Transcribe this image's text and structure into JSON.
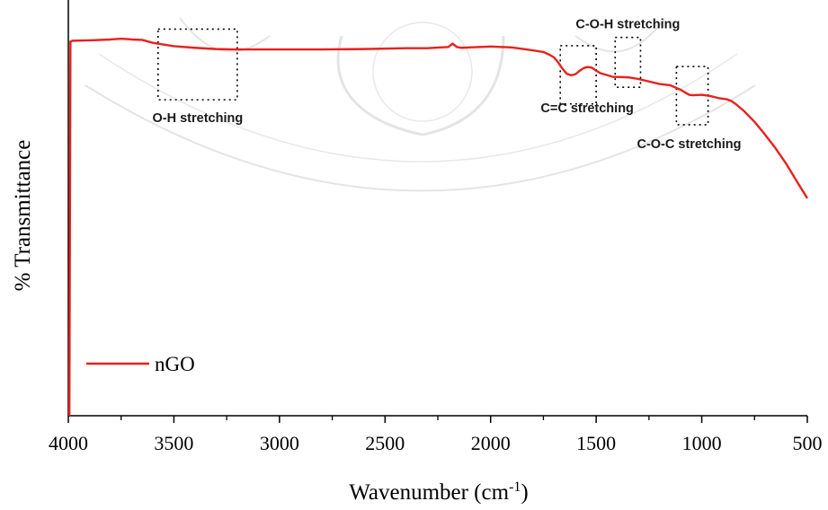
{
  "chart_data": {
    "type": "line",
    "title": "",
    "xlabel": "Wavenumber (cm",
    "xlabel_sup": "-1",
    "xlabel_end": ")",
    "ylabel": "% Transmittance",
    "xlim": [
      4000,
      500
    ],
    "ylim": [
      0,
      100
    ],
    "x_reversed": true,
    "y_ticks_labeled": false,
    "grid": false,
    "legend": {
      "placement": "bottom-left"
    },
    "x_ticks": [
      4000,
      3500,
      3000,
      2500,
      2000,
      1500,
      1000,
      500
    ],
    "x_tick_labels": [
      "4000",
      "3500",
      "3000",
      "2500",
      "2000",
      "1500",
      "1000",
      "500"
    ],
    "series": [
      {
        "name": "nGO",
        "color": "#e8211d",
        "x": [
          3995,
          3990,
          3980,
          3900,
          3800,
          3750,
          3700,
          3650,
          3600,
          3500,
          3400,
          3300,
          3200,
          3000,
          2800,
          2600,
          2400,
          2300,
          2200,
          2180,
          2160,
          2140,
          2100,
          2000,
          1900,
          1800,
          1750,
          1720,
          1700,
          1680,
          1660,
          1640,
          1620,
          1600,
          1580,
          1560,
          1540,
          1520,
          1500,
          1480,
          1460,
          1440,
          1420,
          1400,
          1350,
          1300,
          1250,
          1200,
          1150,
          1100,
          1080,
          1060,
          1040,
          1000,
          960,
          920,
          880,
          860,
          840,
          800,
          750,
          700,
          650,
          600,
          550,
          500
        ],
        "y": [
          0,
          90.0,
          90.2,
          90.3,
          90.5,
          90.7,
          90.5,
          90.4,
          89.7,
          88.9,
          88.5,
          88.2,
          88.1,
          88.1,
          88.1,
          88.2,
          88.4,
          88.4,
          88.7,
          89.5,
          88.7,
          88.5,
          88.6,
          88.8,
          88.6,
          87.9,
          87.5,
          86.8,
          86.2,
          85.0,
          83.5,
          82.3,
          81.9,
          82.1,
          82.9,
          83.6,
          83.9,
          83.7,
          83.0,
          82.4,
          82.1,
          81.8,
          81.5,
          81.5,
          81.4,
          81.0,
          80.4,
          79.8,
          79.5,
          78.4,
          77.8,
          77.2,
          77.1,
          77.2,
          76.9,
          76.4,
          76.1,
          75.7,
          75.0,
          73.3,
          70.7,
          67.6,
          64.3,
          60.6,
          56.4,
          52.3
        ]
      }
    ],
    "annotations": [
      {
        "text": "O-H stretching",
        "x_range": [
          3575,
          3200
        ],
        "y_range": [
          76,
          93
        ]
      },
      {
        "text": "C=C stretching",
        "x_range": [
          1670,
          1500
        ],
        "y_range": [
          75,
          89
        ]
      },
      {
        "text": "C-O-H stretching",
        "x_range": [
          1410,
          1290
        ],
        "y_range": [
          79,
          91
        ]
      },
      {
        "text": "C-O-C stretching",
        "x_range": [
          1120,
          970
        ],
        "y_range": [
          70,
          84
        ]
      }
    ]
  }
}
